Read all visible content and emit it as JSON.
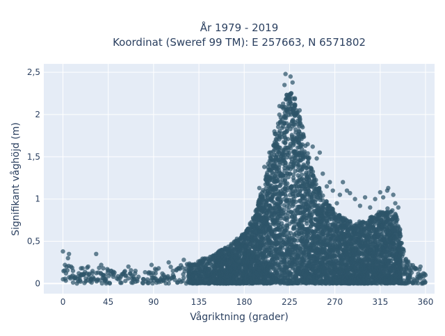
{
  "chart_data": {
    "type": "scatter",
    "title_line1": "År 1979 - 2019",
    "title_line2": "Koordinat (Sweref 99 TM): E 257663, N 6571802",
    "xlabel": "Vågriktning (grader)",
    "ylabel": "Signifikant våghöjd (m)",
    "xlim": [
      -19,
      369
    ],
    "ylim": [
      -0.12,
      2.6
    ],
    "xticks": [
      0,
      45,
      90,
      135,
      180,
      225,
      270,
      315,
      360
    ],
    "xtick_labels": [
      "0",
      "45",
      "90",
      "135",
      "180",
      "225",
      "270",
      "315",
      "360"
    ],
    "yticks": [
      0,
      0.5,
      1,
      1.5,
      2,
      2.5
    ],
    "ytick_labels": [
      "0",
      "0,5",
      "1",
      "1,5",
      "2",
      "2,5"
    ],
    "grid": true,
    "marker_color": "#2e5469",
    "marker_opacity": 0.72,
    "plot_bg": "#e5ecf6",
    "envelope": [
      [
        0,
        0.25
      ],
      [
        10,
        0.22
      ],
      [
        20,
        0.18
      ],
      [
        30,
        0.2
      ],
      [
        45,
        0.18
      ],
      [
        60,
        0.15
      ],
      [
        75,
        0.17
      ],
      [
        90,
        0.18
      ],
      [
        105,
        0.2
      ],
      [
        120,
        0.22
      ],
      [
        135,
        0.28
      ],
      [
        150,
        0.35
      ],
      [
        165,
        0.45
      ],
      [
        180,
        0.6
      ],
      [
        190,
        0.8
      ],
      [
        200,
        1.2
      ],
      [
        210,
        1.75
      ],
      [
        218,
        2.15
      ],
      [
        225,
        2.3
      ],
      [
        232,
        2.2
      ],
      [
        240,
        1.7
      ],
      [
        250,
        1.25
      ],
      [
        260,
        1.0
      ],
      [
        270,
        0.85
      ],
      [
        280,
        0.78
      ],
      [
        290,
        0.72
      ],
      [
        300,
        0.75
      ],
      [
        310,
        0.82
      ],
      [
        318,
        0.88
      ],
      [
        325,
        0.9
      ],
      [
        331,
        0.82
      ],
      [
        335,
        0.65
      ],
      [
        340,
        0.3
      ],
      [
        350,
        0.2
      ],
      [
        358,
        0.15
      ]
    ],
    "points": [
      [
        0,
        0.38
      ],
      [
        2,
        0.22
      ],
      [
        5,
        0.3
      ],
      [
        6,
        0.35
      ],
      [
        8,
        0.2
      ],
      [
        3,
        0.12
      ],
      [
        10,
        0.15
      ],
      [
        12,
        0.08
      ],
      [
        15,
        0.05
      ],
      [
        18,
        0.18
      ],
      [
        20,
        0.1
      ],
      [
        25,
        0.2
      ],
      [
        28,
        0.05
      ],
      [
        35,
        0.13
      ],
      [
        38,
        0.22
      ],
      [
        40,
        0.1
      ],
      [
        42,
        0.05
      ],
      [
        48,
        0.15
      ],
      [
        50,
        0.08
      ],
      [
        55,
        0.05
      ],
      [
        60,
        0.12
      ],
      [
        65,
        0.2
      ],
      [
        70,
        0.08
      ],
      [
        80,
        0.05
      ],
      [
        85,
        0.12
      ],
      [
        95,
        0.18
      ],
      [
        100,
        0.1
      ],
      [
        105,
        0.25
      ],
      [
        110,
        0.08
      ],
      [
        115,
        0.18
      ],
      [
        120,
        0.28
      ],
      [
        125,
        0.12
      ],
      [
        130,
        0.2
      ],
      [
        40,
        0.18
      ],
      [
        33,
        0.35
      ],
      [
        88,
        0.22
      ],
      [
        92,
        0.12
      ],
      [
        100,
        0.04
      ],
      [
        72,
        0.15
      ],
      [
        62,
        0.03
      ],
      [
        200,
        1.38
      ],
      [
        195,
        1.13
      ],
      [
        205,
        1.55
      ],
      [
        210,
        1.8
      ],
      [
        215,
        2.1
      ],
      [
        220,
        2.35
      ],
      [
        221,
        2.48
      ],
      [
        226,
        2.45
      ],
      [
        228,
        2.38
      ],
      [
        230,
        2.12
      ],
      [
        235,
        2.05
      ],
      [
        238,
        1.85
      ],
      [
        243,
        1.65
      ],
      [
        248,
        1.62
      ],
      [
        252,
        1.48
      ],
      [
        255,
        1.55
      ],
      [
        258,
        1.3
      ],
      [
        262,
        1.15
      ],
      [
        265,
        1.2
      ],
      [
        268,
        1.1
      ],
      [
        272,
        0.95
      ],
      [
        275,
        1.05
      ],
      [
        278,
        1.2
      ],
      [
        282,
        1.1
      ],
      [
        285,
        1.07
      ],
      [
        290,
        1.0
      ],
      [
        295,
        0.92
      ],
      [
        300,
        1.02
      ],
      [
        305,
        0.9
      ],
      [
        310,
        1.0
      ],
      [
        315,
        1.08
      ],
      [
        318,
        1.02
      ],
      [
        322,
        1.1
      ],
      [
        323,
        1.13
      ],
      [
        328,
        1.05
      ],
      [
        330,
        0.95
      ],
      [
        333,
        0.9
      ],
      [
        340,
        0.28
      ],
      [
        345,
        0.22
      ],
      [
        350,
        0.18
      ],
      [
        355,
        0.2
      ],
      [
        358,
        0.12
      ],
      [
        360,
        0.1
      ],
      [
        348,
        0.05
      ],
      [
        352,
        0.08
      ]
    ]
  }
}
